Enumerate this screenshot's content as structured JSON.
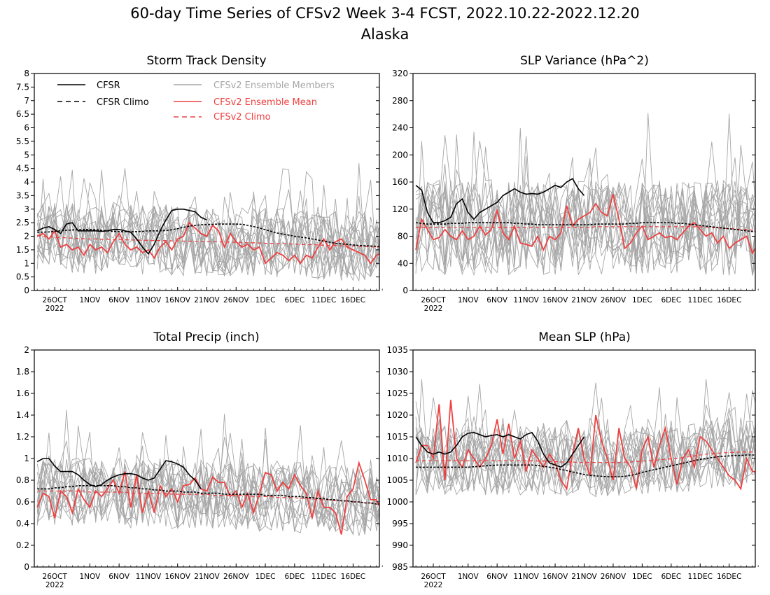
{
  "title_line1": "60-day Time Series of CFSv2 Week 3-4 FCST, 2022.10.22-2022.12.20",
  "title_line2": "Alaska",
  "colors": {
    "cfsr": "#000000",
    "members": "#a6a6a6",
    "mean": "#ee4040"
  },
  "legend": {
    "cfsr": "CFSR",
    "cfsr_climo": "CFSR Climo",
    "members": "CFSv2 Ensemble Members",
    "mean": "CFSv2 Ensemble Mean",
    "climo": "CFSv2 Climo"
  },
  "chart_data": [
    {
      "type": "line",
      "title": "Storm Track Density",
      "x_ticks": [
        "26OCT",
        "1NOV",
        "6NOV",
        "11NOV",
        "16NOV",
        "21NOV",
        "26NOV",
        "1DEC",
        "6DEC",
        "11DEC",
        "16DEC"
      ],
      "x_tick_days": [
        4,
        10,
        15,
        20,
        25,
        30,
        35,
        40,
        45,
        50,
        55
      ],
      "year_label": "2022",
      "ylim": [
        0,
        8
      ],
      "y_ticks": [
        "0",
        "0.5",
        "1",
        "1.5",
        "2",
        "2.5",
        "3",
        "3.5",
        "4",
        "4.5",
        "5",
        "5.5",
        "6",
        "6.5",
        "7",
        "7.5",
        "8"
      ],
      "series": [
        {
          "name": "CFSR",
          "values": [
            2.2,
            2.3,
            2.35,
            2.25,
            2.1,
            2.45,
            2.5,
            2.2,
            2.2,
            2.2,
            2.2,
            2.18,
            2.2,
            2.25,
            2.25,
            2.2,
            2.15,
            1.9,
            1.6,
            1.35,
            1.7,
            2.2,
            2.6,
            2.95,
            3.0,
            3.0,
            2.95,
            2.9,
            2.7,
            2.6
          ]
        },
        {
          "name": "CFSR Climo",
          "values": [
            2.15,
            2.15,
            2.16,
            2.18,
            2.2,
            2.22,
            2.23,
            2.24,
            2.25,
            2.25,
            2.24,
            2.22,
            2.2,
            2.18,
            2.17,
            2.17,
            2.17,
            2.17,
            2.18,
            2.2,
            2.2,
            2.2,
            2.21,
            2.24,
            2.28,
            2.33,
            2.37,
            2.4,
            2.42,
            2.43,
            2.44,
            2.45,
            2.45,
            2.45,
            2.45,
            2.44,
            2.4,
            2.36,
            2.3,
            2.24,
            2.18,
            2.12,
            2.08,
            2.04,
            2.0,
            1.97,
            1.94,
            1.9,
            1.86,
            1.82,
            1.78,
            1.74,
            1.72,
            1.7,
            1.68,
            1.66,
            1.65,
            1.64,
            1.63,
            1.62
          ]
        },
        {
          "name": "CFSv2 Ensemble Mean",
          "values": [
            2.0,
            2.1,
            1.9,
            2.2,
            1.6,
            1.7,
            1.5,
            1.6,
            1.3,
            1.7,
            1.5,
            1.6,
            1.4,
            1.8,
            2.1,
            1.7,
            1.5,
            1.6,
            1.4,
            1.5,
            1.2,
            1.6,
            1.8,
            1.5,
            1.9,
            2.0,
            2.5,
            2.3,
            2.1,
            2.0,
            2.4,
            2.2,
            1.6,
            2.1,
            1.8,
            1.6,
            1.7,
            1.5,
            1.6,
            1.0,
            1.2,
            1.4,
            1.3,
            1.1,
            1.3,
            1.0,
            1.3,
            1.2,
            1.6,
            1.9,
            1.5,
            1.8,
            1.9,
            1.6,
            1.5,
            1.4,
            1.3,
            1.0,
            1.3,
            1.4
          ]
        },
        {
          "name": "CFSv2 Climo",
          "values": [
            2.02,
            2.0,
            1.98,
            1.96,
            1.95,
            1.94,
            1.93,
            1.92,
            1.91,
            1.9,
            1.9,
            1.89,
            1.89,
            1.88,
            1.88,
            1.87,
            1.86,
            1.86,
            1.85,
            1.85,
            1.84,
            1.84,
            1.84,
            1.83,
            1.83,
            1.82,
            1.82,
            1.81,
            1.81,
            1.8,
            1.8,
            1.79,
            1.79,
            1.78,
            1.78,
            1.77,
            1.76,
            1.76,
            1.75,
            1.74,
            1.74,
            1.73,
            1.72,
            1.72,
            1.71,
            1.7,
            1.69,
            1.69,
            1.68,
            1.67,
            1.66,
            1.66,
            1.65,
            1.64,
            1.64,
            1.63,
            1.62,
            1.61,
            1.6,
            1.6
          ]
        }
      ]
    },
    {
      "type": "line",
      "title": "SLP Variance (hPa^2)",
      "x_ticks": [
        "26OCT",
        "1NOV",
        "6NOV",
        "11NOV",
        "16NOV",
        "21NOV",
        "26NOV",
        "1DEC",
        "6DEC",
        "11DEC",
        "16DEC"
      ],
      "x_tick_days": [
        4,
        10,
        15,
        20,
        25,
        30,
        35,
        40,
        45,
        50,
        55
      ],
      "year_label": "2022",
      "ylim": [
        0,
        320
      ],
      "y_ticks": [
        "0",
        "40",
        "80",
        "120",
        "160",
        "200",
        "240",
        "280",
        "320"
      ],
      "series": [
        {
          "name": "CFSR",
          "values": [
            155,
            148,
            115,
            100,
            100,
            103,
            108,
            128,
            135,
            115,
            105,
            115,
            120,
            125,
            130,
            140,
            145,
            150,
            145,
            142,
            143,
            142,
            145,
            150,
            155,
            152,
            160,
            165,
            150,
            140
          ]
        },
        {
          "name": "CFSR Climo",
          "values": [
            100,
            99,
            98,
            98,
            98,
            98,
            99,
            99,
            99,
            100,
            100,
            100,
            100,
            100,
            100,
            100,
            100,
            99,
            99,
            98,
            98,
            97,
            97,
            97,
            97,
            97,
            97,
            97,
            97,
            97,
            97,
            98,
            98,
            98,
            98,
            98,
            98,
            99,
            99,
            100,
            100,
            100,
            100,
            100,
            100,
            99,
            99,
            98,
            97,
            96,
            95,
            94,
            93,
            92,
            91,
            90,
            89,
            88,
            87,
            87
          ]
        },
        {
          "name": "CFSv2 Ensemble Mean",
          "values": [
            60,
            105,
            90,
            75,
            78,
            90,
            80,
            75,
            88,
            75,
            80,
            95,
            82,
            90,
            118,
            85,
            75,
            95,
            70,
            68,
            65,
            80,
            60,
            80,
            75,
            85,
            125,
            95,
            105,
            110,
            115,
            128,
            115,
            110,
            142,
            105,
            62,
            70,
            85,
            95,
            75,
            80,
            85,
            78,
            80,
            75,
            85,
            95,
            100,
            90,
            80,
            85,
            70,
            80,
            62,
            70,
            75,
            80,
            55,
            70
          ]
        },
        {
          "name": "CFSv2 Climo",
          "values": [
            93,
            93,
            93,
            93,
            93,
            93,
            93,
            93,
            93,
            93,
            93,
            93,
            93,
            93,
            93,
            93,
            93,
            93,
            93,
            93,
            93,
            93,
            93,
            93,
            93,
            93,
            93,
            93,
            93,
            93,
            93,
            94,
            94,
            94,
            94,
            94,
            94,
            94,
            94,
            94,
            94,
            94,
            94,
            94,
            94,
            94,
            94,
            94,
            94,
            94,
            93,
            93,
            92,
            92,
            91,
            91,
            90,
            90,
            89,
            89
          ]
        }
      ]
    },
    {
      "type": "line",
      "title": "Total Precip (inch)",
      "x_ticks": [
        "26OCT",
        "1NOV",
        "6NOV",
        "11NOV",
        "16NOV",
        "21NOV",
        "26NOV",
        "1DEC",
        "6DEC",
        "11DEC",
        "16DEC"
      ],
      "x_tick_days": [
        4,
        10,
        15,
        20,
        25,
        30,
        35,
        40,
        45,
        50,
        55
      ],
      "year_label": "2022",
      "ylim": [
        0,
        2
      ],
      "y_ticks": [
        "0",
        "0.2",
        "0.4",
        "0.6",
        "0.8",
        "1",
        "1.2",
        "1.4",
        "1.6",
        "1.8",
        "2"
      ],
      "series": [
        {
          "name": "CFSR",
          "values": [
            0.97,
            1.0,
            1.0,
            0.93,
            0.88,
            0.88,
            0.88,
            0.85,
            0.8,
            0.76,
            0.74,
            0.76,
            0.8,
            0.83,
            0.85,
            0.86,
            0.86,
            0.85,
            0.82,
            0.8,
            0.82,
            0.9,
            0.98,
            0.97,
            0.95,
            0.92,
            0.85,
            0.8,
            0.72
          ]
        },
        {
          "name": "CFSR Climo",
          "values": [
            0.72,
            0.72,
            0.72,
            0.73,
            0.73,
            0.74,
            0.74,
            0.75,
            0.75,
            0.75,
            0.75,
            0.75,
            0.75,
            0.75,
            0.74,
            0.74,
            0.73,
            0.73,
            0.72,
            0.72,
            0.71,
            0.71,
            0.7,
            0.7,
            0.7,
            0.69,
            0.69,
            0.69,
            0.68,
            0.68,
            0.68,
            0.68,
            0.67,
            0.67,
            0.67,
            0.67,
            0.67,
            0.67,
            0.67,
            0.66,
            0.66,
            0.66,
            0.66,
            0.65,
            0.65,
            0.65,
            0.64,
            0.64,
            0.63,
            0.63,
            0.62,
            0.62,
            0.61,
            0.61,
            0.6,
            0.6,
            0.59,
            0.59,
            0.58,
            0.58
          ]
        },
        {
          "name": "CFSv2 Ensemble Mean",
          "values": [
            0.55,
            0.68,
            0.65,
            0.45,
            0.7,
            0.65,
            0.5,
            0.72,
            0.62,
            0.55,
            0.7,
            0.65,
            0.72,
            0.8,
            0.68,
            0.88,
            0.55,
            0.85,
            0.5,
            0.7,
            0.5,
            0.75,
            0.65,
            0.72,
            0.6,
            0.75,
            0.76,
            0.82,
            0.72,
            0.7,
            0.83,
            0.78,
            0.78,
            0.65,
            0.7,
            0.55,
            0.68,
            0.5,
            0.68,
            0.87,
            0.85,
            0.7,
            0.78,
            0.72,
            0.85,
            0.75,
            0.68,
            0.45,
            0.7,
            0.55,
            0.55,
            0.5,
            0.3,
            0.65,
            0.72,
            0.96,
            0.8,
            0.62,
            0.62,
            0.5
          ]
        },
        {
          "name": "CFSv2 Climo",
          "values": [
            0.7,
            0.7,
            0.7,
            0.7,
            0.7,
            0.7,
            0.7,
            0.7,
            0.7,
            0.69,
            0.69,
            0.69,
            0.69,
            0.69,
            0.69,
            0.69,
            0.68,
            0.68,
            0.68,
            0.68,
            0.68,
            0.68,
            0.68,
            0.67,
            0.67,
            0.67,
            0.67,
            0.67,
            0.67,
            0.67,
            0.66,
            0.66,
            0.66,
            0.66,
            0.66,
            0.66,
            0.66,
            0.65,
            0.65,
            0.65,
            0.65,
            0.64,
            0.64,
            0.64,
            0.64,
            0.63,
            0.63,
            0.63,
            0.62,
            0.62,
            0.62,
            0.61,
            0.61,
            0.61,
            0.6,
            0.6,
            0.59,
            0.59,
            0.58,
            0.58
          ]
        }
      ]
    },
    {
      "type": "line",
      "title": "Mean SLP (hPa)",
      "x_ticks": [
        "26OCT",
        "1NOV",
        "6NOV",
        "11NOV",
        "16NOV",
        "21NOV",
        "26NOV",
        "1DEC",
        "6DEC",
        "11DEC",
        "16DEC"
      ],
      "x_tick_days": [
        4,
        10,
        15,
        20,
        25,
        30,
        35,
        40,
        45,
        50,
        55
      ],
      "year_label": "2022",
      "ylim": [
        985,
        1035
      ],
      "y_ticks": [
        "985",
        "990",
        "995",
        "1000",
        "1005",
        "1010",
        "1015",
        "1020",
        "1025",
        "1030",
        "1035"
      ],
      "series": [
        {
          "name": "CFSR",
          "values": [
            1015,
            1013,
            1011.5,
            1011,
            1011.5,
            1011,
            1011.5,
            1013,
            1015,
            1015.8,
            1016,
            1015.5,
            1015,
            1015.3,
            1015.5,
            1015,
            1015.5,
            1015,
            1014.5,
            1015.5,
            1016,
            1014,
            1011,
            1009,
            1008.5,
            1008,
            1009,
            1011,
            1013,
            1015
          ]
        },
        {
          "name": "CFSR Climo",
          "values": [
            1008,
            1008,
            1008,
            1008,
            1008,
            1008,
            1008,
            1008,
            1008,
            1008,
            1008.1,
            1008.2,
            1008.3,
            1008.4,
            1008.5,
            1008.5,
            1008.5,
            1008.5,
            1008.5,
            1008.5,
            1008.5,
            1008.4,
            1008.2,
            1008,
            1007.8,
            1007.5,
            1007.2,
            1006.9,
            1006.6,
            1006.3,
            1006.1,
            1006,
            1005.9,
            1005.8,
            1005.8,
            1005.8,
            1005.9,
            1006.1,
            1006.4,
            1006.8,
            1007.1,
            1007.4,
            1007.7,
            1008,
            1008.3,
            1008.6,
            1008.9,
            1009.2,
            1009.5,
            1009.8,
            1010,
            1010.2,
            1010.4,
            1010.5,
            1010.6,
            1010.7,
            1010.7,
            1010.8,
            1010.8,
            1010.8
          ]
        },
        {
          "name": "CFSv2 Ensemble Mean",
          "values": [
            1009,
            1013,
            1013,
            1010,
            1022.5,
            1005,
            1023.5,
            1010,
            1008,
            1012,
            1010,
            1008,
            1010,
            1013,
            1019,
            1011,
            1018,
            1010,
            1014,
            1007,
            1012,
            1010,
            1008,
            1011,
            1009,
            1005,
            1003,
            1011,
            1017,
            1010,
            1006,
            1020,
            1014,
            1010,
            1005,
            1017,
            1010,
            1008,
            1003,
            1012,
            1015,
            1008,
            1013,
            1017,
            1010,
            1004,
            1010,
            1012,
            1008,
            1015,
            1014,
            1012,
            1010,
            1008,
            1006,
            1005,
            1003,
            1010,
            1007,
            1007
          ]
        },
        {
          "name": "CFSv2 Climo",
          "values": [
            1009.5,
            1009.5,
            1009.5,
            1009.5,
            1009.5,
            1009.5,
            1009.5,
            1009.5,
            1009.5,
            1009.5,
            1009.5,
            1009.5,
            1009.5,
            1009.5,
            1009.5,
            1009.5,
            1009.5,
            1009.5,
            1009.5,
            1009.5,
            1009.5,
            1009.4,
            1009.4,
            1009.3,
            1009.3,
            1009.2,
            1009.2,
            1009.2,
            1009.1,
            1009.1,
            1009.1,
            1009.1,
            1009.1,
            1009.1,
            1009.1,
            1009.1,
            1009.2,
            1009.2,
            1009.3,
            1009.4,
            1009.5,
            1009.6,
            1009.7,
            1009.8,
            1009.9,
            1010,
            1010.2,
            1010.4,
            1010.6,
            1010.8,
            1011,
            1011.1,
            1011.2,
            1011.3,
            1011.4,
            1011.4,
            1011.5,
            1011.5,
            1011.5,
            1011.5
          ]
        }
      ]
    }
  ]
}
